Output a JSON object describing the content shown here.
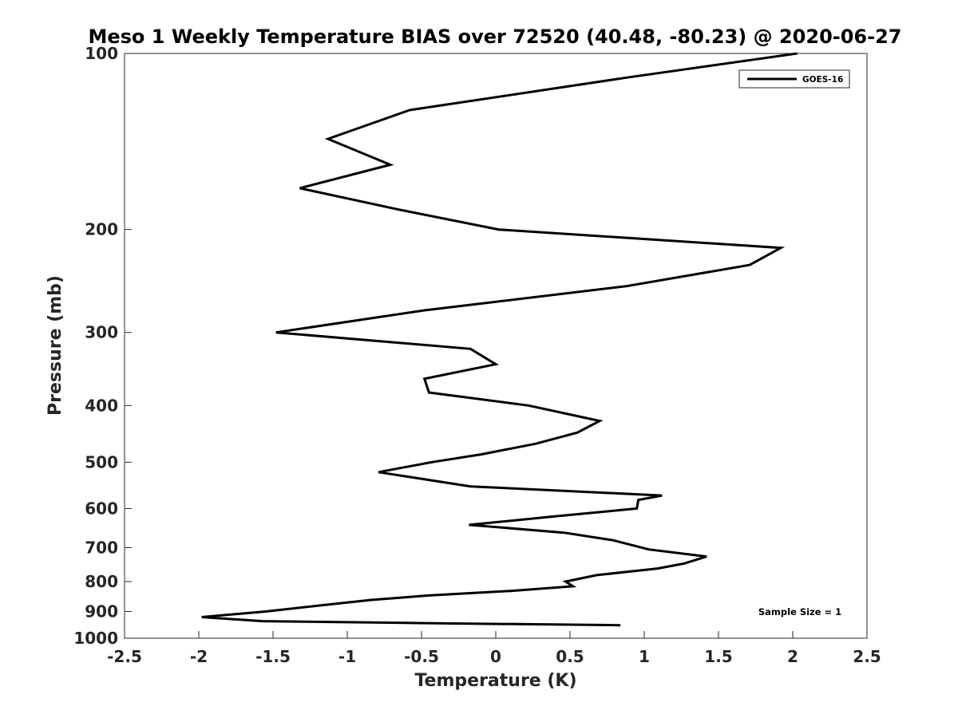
{
  "chart_data": {
    "type": "line",
    "title": "Meso 1 Weekly Temperature BIAS over 72520 (40.48, -80.23) @ 2020-06-27",
    "xlabel": "Temperature (K)",
    "ylabel": "Pressure (mb)",
    "xlim": [
      -2.5,
      2.5
    ],
    "ylim": [
      100,
      1000
    ],
    "y_scale": "log",
    "y_reversed": true,
    "x_ticks": [
      -2.5,
      -2,
      -1.5,
      -1,
      -0.5,
      0,
      0.5,
      1,
      1.5,
      2,
      2.5
    ],
    "x_tick_labels": [
      "-2.5",
      "-2",
      "-1.5",
      "-1",
      "-0.5",
      "0",
      "0.5",
      "1",
      "1.5",
      "2",
      "2.5"
    ],
    "y_ticks": [
      100,
      200,
      300,
      400,
      500,
      600,
      700,
      800,
      900,
      1000
    ],
    "y_tick_labels": [
      "100",
      "200",
      "300",
      "400",
      "500",
      "600",
      "700",
      "800",
      "900",
      "1000"
    ],
    "grid": false,
    "legend_position": "top-right",
    "annotation": "Sample Size = 1",
    "line_color": "#000000",
    "series": [
      {
        "name": "GOES-16",
        "points": [
          {
            "x": 2.03,
            "y": 100
          },
          {
            "x": 0.88,
            "y": 110
          },
          {
            "x": -0.58,
            "y": 125
          },
          {
            "x": -1.13,
            "y": 140
          },
          {
            "x": -0.71,
            "y": 155
          },
          {
            "x": -1.32,
            "y": 170
          },
          {
            "x": -0.65,
            "y": 185
          },
          {
            "x": 0.02,
            "y": 200
          },
          {
            "x": 1.92,
            "y": 215
          },
          {
            "x": 1.71,
            "y": 230
          },
          {
            "x": 0.88,
            "y": 250
          },
          {
            "x": -0.48,
            "y": 275
          },
          {
            "x": -1.48,
            "y": 300
          },
          {
            "x": -0.17,
            "y": 320
          },
          {
            "x": 0.0,
            "y": 340
          },
          {
            "x": -0.48,
            "y": 360
          },
          {
            "x": -0.45,
            "y": 380
          },
          {
            "x": 0.22,
            "y": 400
          },
          {
            "x": 0.7,
            "y": 425
          },
          {
            "x": 0.55,
            "y": 445
          },
          {
            "x": 0.27,
            "y": 465
          },
          {
            "x": -0.1,
            "y": 485
          },
          {
            "x": -0.43,
            "y": 500
          },
          {
            "x": -0.79,
            "y": 520
          },
          {
            "x": -0.17,
            "y": 550
          },
          {
            "x": 1.12,
            "y": 570
          },
          {
            "x": 0.96,
            "y": 580
          },
          {
            "x": 0.95,
            "y": 600
          },
          {
            "x": 0.37,
            "y": 620
          },
          {
            "x": -0.18,
            "y": 640
          },
          {
            "x": 0.46,
            "y": 660
          },
          {
            "x": 0.79,
            "y": 680
          },
          {
            "x": 1.03,
            "y": 705
          },
          {
            "x": 1.42,
            "y": 725
          },
          {
            "x": 1.27,
            "y": 745
          },
          {
            "x": 1.09,
            "y": 760
          },
          {
            "x": 0.68,
            "y": 780
          },
          {
            "x": 0.47,
            "y": 800
          },
          {
            "x": 0.52,
            "y": 815
          },
          {
            "x": 0.1,
            "y": 830
          },
          {
            "x": -0.45,
            "y": 845
          },
          {
            "x": -0.84,
            "y": 860
          },
          {
            "x": -1.2,
            "y": 880
          },
          {
            "x": -1.55,
            "y": 900
          },
          {
            "x": -1.98,
            "y": 920
          },
          {
            "x": -1.57,
            "y": 935
          },
          {
            "x": -0.52,
            "y": 942
          },
          {
            "x": 0.84,
            "y": 950
          }
        ]
      }
    ]
  }
}
